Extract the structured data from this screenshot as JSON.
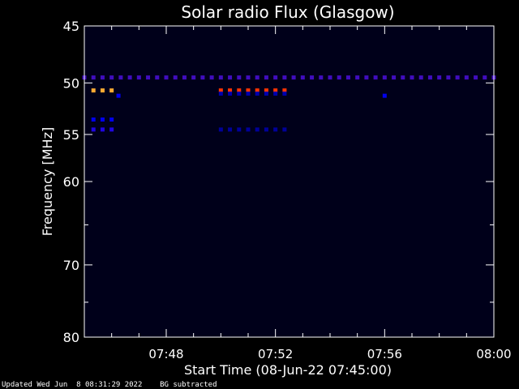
{
  "chart_data": {
    "type": "heatmap",
    "title": "Solar radio Flux (Glasgow)",
    "xlabel": "Start Time (08-Jun-22 07:45:00)",
    "ylabel": "Frequency [MHz]",
    "xlim": [
      "07:45",
      "08:00"
    ],
    "ylim": [
      45,
      80
    ],
    "y_scale": "log",
    "x_ticks": [
      "07:48",
      "07:52",
      "07:56",
      "08:00"
    ],
    "y_ticks": [
      45,
      50,
      55,
      60,
      70,
      80
    ],
    "background_color": "#00001a",
    "color_scale": {
      "low": "#000033",
      "mid": "#0000ff",
      "high": "#ff3300",
      "top": "#ffaa33"
    },
    "features": [
      {
        "name": "continuous band 49.5 MHz",
        "freq_mhz": 49.5,
        "time_start": "07:45",
        "time_end": "08:00",
        "intensity": 0.6
      },
      {
        "name": "burst 50.7 MHz early",
        "freq_mhz": 50.7,
        "time_start": "07:45:20",
        "time_end": "07:46:00",
        "intensity": 1.0
      },
      {
        "name": "burst 50.7 MHz",
        "freq_mhz": 50.7,
        "time_start": "07:50:00",
        "time_end": "07:52:30",
        "intensity": 0.9
      },
      {
        "name": "band 53.5 MHz early",
        "freq_mhz": 53.5,
        "time_start": "07:45:20",
        "time_end": "07:46:00",
        "intensity": 0.45
      },
      {
        "name": "band 54.5 MHz early",
        "freq_mhz": 54.5,
        "time_start": "07:45:20",
        "time_end": "07:46:00",
        "intensity": 0.55
      },
      {
        "name": "band 54.5 MHz faint",
        "freq_mhz": 54.5,
        "time_start": "07:50:00",
        "time_end": "07:52:30",
        "intensity": 0.25
      },
      {
        "name": "band 51.0 MHz faint",
        "freq_mhz": 51.0,
        "time_start": "07:50:00",
        "time_end": "07:52:30",
        "intensity": 0.3
      },
      {
        "name": "point 51.2 MHz",
        "freq_mhz": 51.2,
        "time_start": "07:46:15",
        "time_end": "07:46:25",
        "intensity": 0.45
      },
      {
        "name": "point 51.2 MHz late",
        "freq_mhz": 51.2,
        "time_start": "07:56:00",
        "time_end": "07:56:10",
        "intensity": 0.45
      }
    ]
  },
  "footer": {
    "updated": "Updated Wed Jun  8 08:31:29 2022",
    "note": "BG subtracted"
  }
}
